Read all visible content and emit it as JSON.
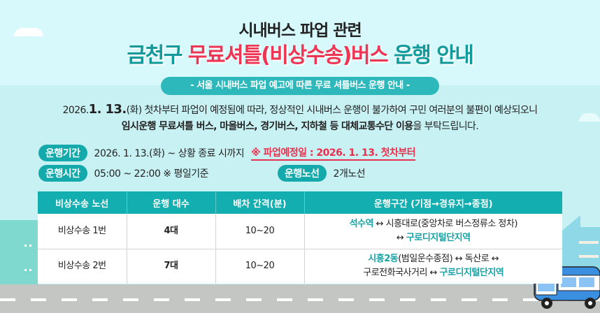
{
  "header": {
    "title_line1": "시내버스 파업 관련",
    "title_line2_a": "금천구 ",
    "title_line2_b": "무료셔틀(비상수송)버스",
    "title_line2_c": " 운행 안내",
    "subtitle": "- 서울 시내버스 파업 예고에 따른 무료 셔틀버스 운행 안내 -"
  },
  "intro": {
    "date_year": "2026.",
    "date_md": "1. 13.",
    "line1_rest": "(화) 첫차부터 파업이 예정됨에 따라, 정상적인 시내버스 운행이 불가하여 구민 여러분의 불편이 예상되오니",
    "line2_bold": "임시운행 무료셔틀 버스, 마을버스, 경기버스, 지하철 등 대체교통수단 이용",
    "line2_rest": "을 부탁드립니다."
  },
  "info": {
    "period_label": "운행기간",
    "period_value": "2026. 1. 13.(화) ~ 상황 종료 시까지",
    "notice": "※ 파업예정일 : 2026. 1. 13. 첫차부터",
    "hours_label": "운행시간",
    "hours_value": "05:00 ~ 22:00 ※ 평일기준",
    "routes_label": "운행노선",
    "routes_value": "2개노선"
  },
  "table": {
    "headers": [
      "비상수송 노선",
      "운행 대수",
      "배차 간격(분)",
      "운행구간 (기점→경유지→종점)"
    ],
    "rows": [
      {
        "route": "비상수송 1번",
        "buses": "4대",
        "interval": "10~20",
        "seg_a": "석수역",
        "seg_b": " ↔ 시흥대로(중앙차로 버스정류소 정차)",
        "seg_c": "↔ ",
        "seg_d": "구로디지털단지역"
      },
      {
        "route": "비상수송 2번",
        "buses": "7대",
        "interval": "10~20",
        "seg_a": "시흥2동",
        "seg_b": "(범일운수종점) ↔ 독산로 ↔",
        "seg_c": "구로전화국사거리 ↔ ",
        "seg_d": "구로디지털단지역"
      }
    ]
  },
  "colors": {
    "teal": "#14999b",
    "red": "#ee3553",
    "header": "#12aeb0"
  },
  "icons": [
    "bus-icon",
    "cloud-icon",
    "building-icon"
  ]
}
